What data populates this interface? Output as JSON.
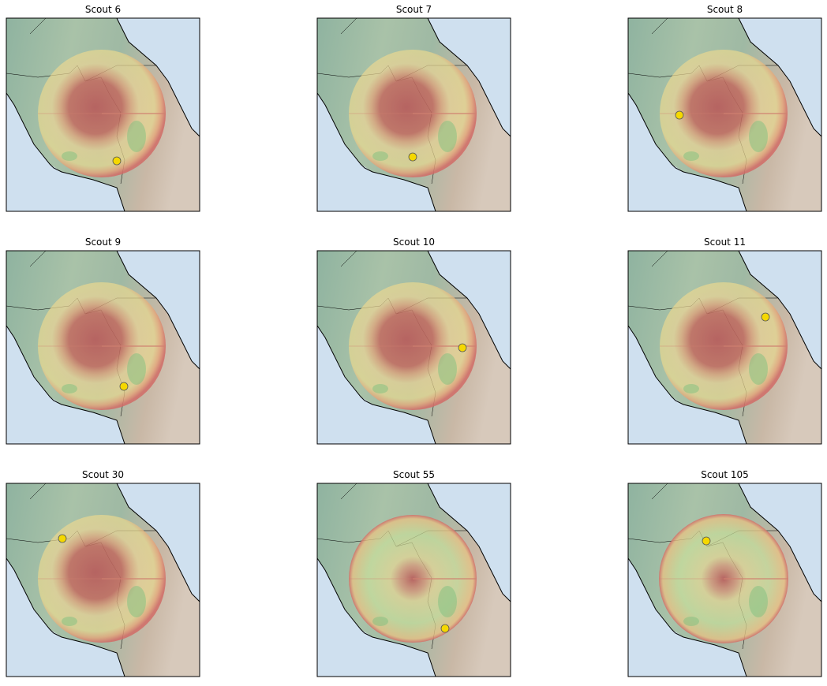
{
  "panels": [
    {
      "title": "Scout 6"
    },
    {
      "title": "Scout 7"
    },
    {
      "title": "Scout 8"
    },
    {
      "title": "Scout 9"
    },
    {
      "title": "Scout 10"
    },
    {
      "title": "Scout 11"
    },
    {
      "title": "Scout 30"
    },
    {
      "title": "Scout 55"
    },
    {
      "title": "Scout 105"
    }
  ]
}
